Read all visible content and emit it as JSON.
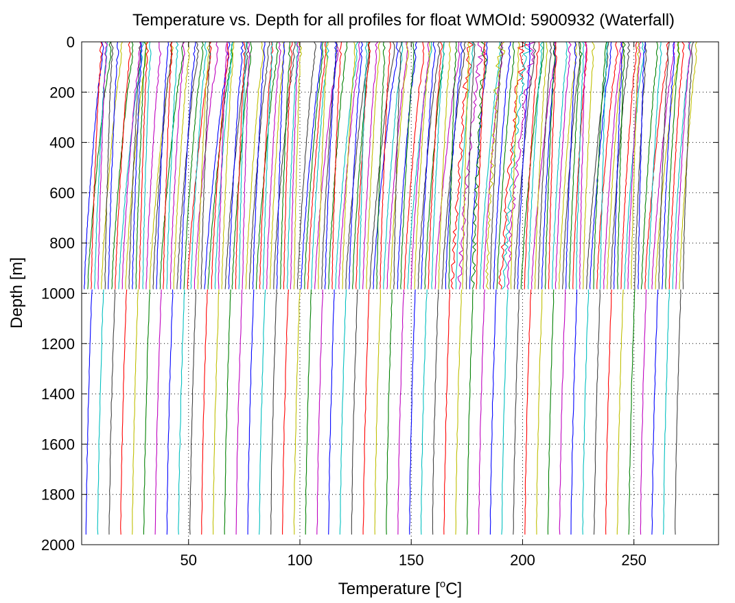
{
  "chart_data": {
    "type": "line",
    "title": "Temperature vs. Depth for all profiles for float WMOId: 5900932 (Waterfall)",
    "xlabel": "Temperature [",
    "xlabel_sup": "o",
    "xlabel_end": "C]",
    "ylabel": "Depth [m]",
    "xlim": [
      2,
      288
    ],
    "ylim": [
      0,
      2000
    ],
    "y_reversed": true,
    "x_ticks": [
      50,
      100,
      150,
      200,
      250
    ],
    "x_tick_labels": [
      "50",
      "100",
      "150",
      "200",
      "250"
    ],
    "y_ticks": [
      0,
      200,
      400,
      600,
      800,
      1000,
      1200,
      1400,
      1600,
      1800,
      2000
    ],
    "y_tick_labels": [
      "0",
      "200",
      "400",
      "600",
      "800",
      "1000",
      "1200",
      "1400",
      "1600",
      "1800",
      "2000"
    ],
    "grid": "dotted",
    "legend": "none",
    "color_cycle": [
      "#0000ff",
      "#008000",
      "#ff0000",
      "#00bfbf",
      "#bf00bf",
      "#bfbf00",
      "#404040"
    ],
    "shallow_profiles": {
      "count": 175,
      "max_depth": 985,
      "bottom_temperature_range": [
        3.2,
        272
      ],
      "surface_offset_range": [
        2.5,
        11
      ],
      "depth_range": [
        0,
        985
      ]
    },
    "deep_profiles": {
      "count": 52,
      "bottom_temperature_range": [
        4,
        268.5
      ],
      "depth_range": [
        985,
        1975
      ],
      "top_depth": 985
    },
    "anomalous_profiles": {
      "temperature_range": [
        162,
        195
      ],
      "depth_range": [
        0,
        985
      ]
    }
  }
}
